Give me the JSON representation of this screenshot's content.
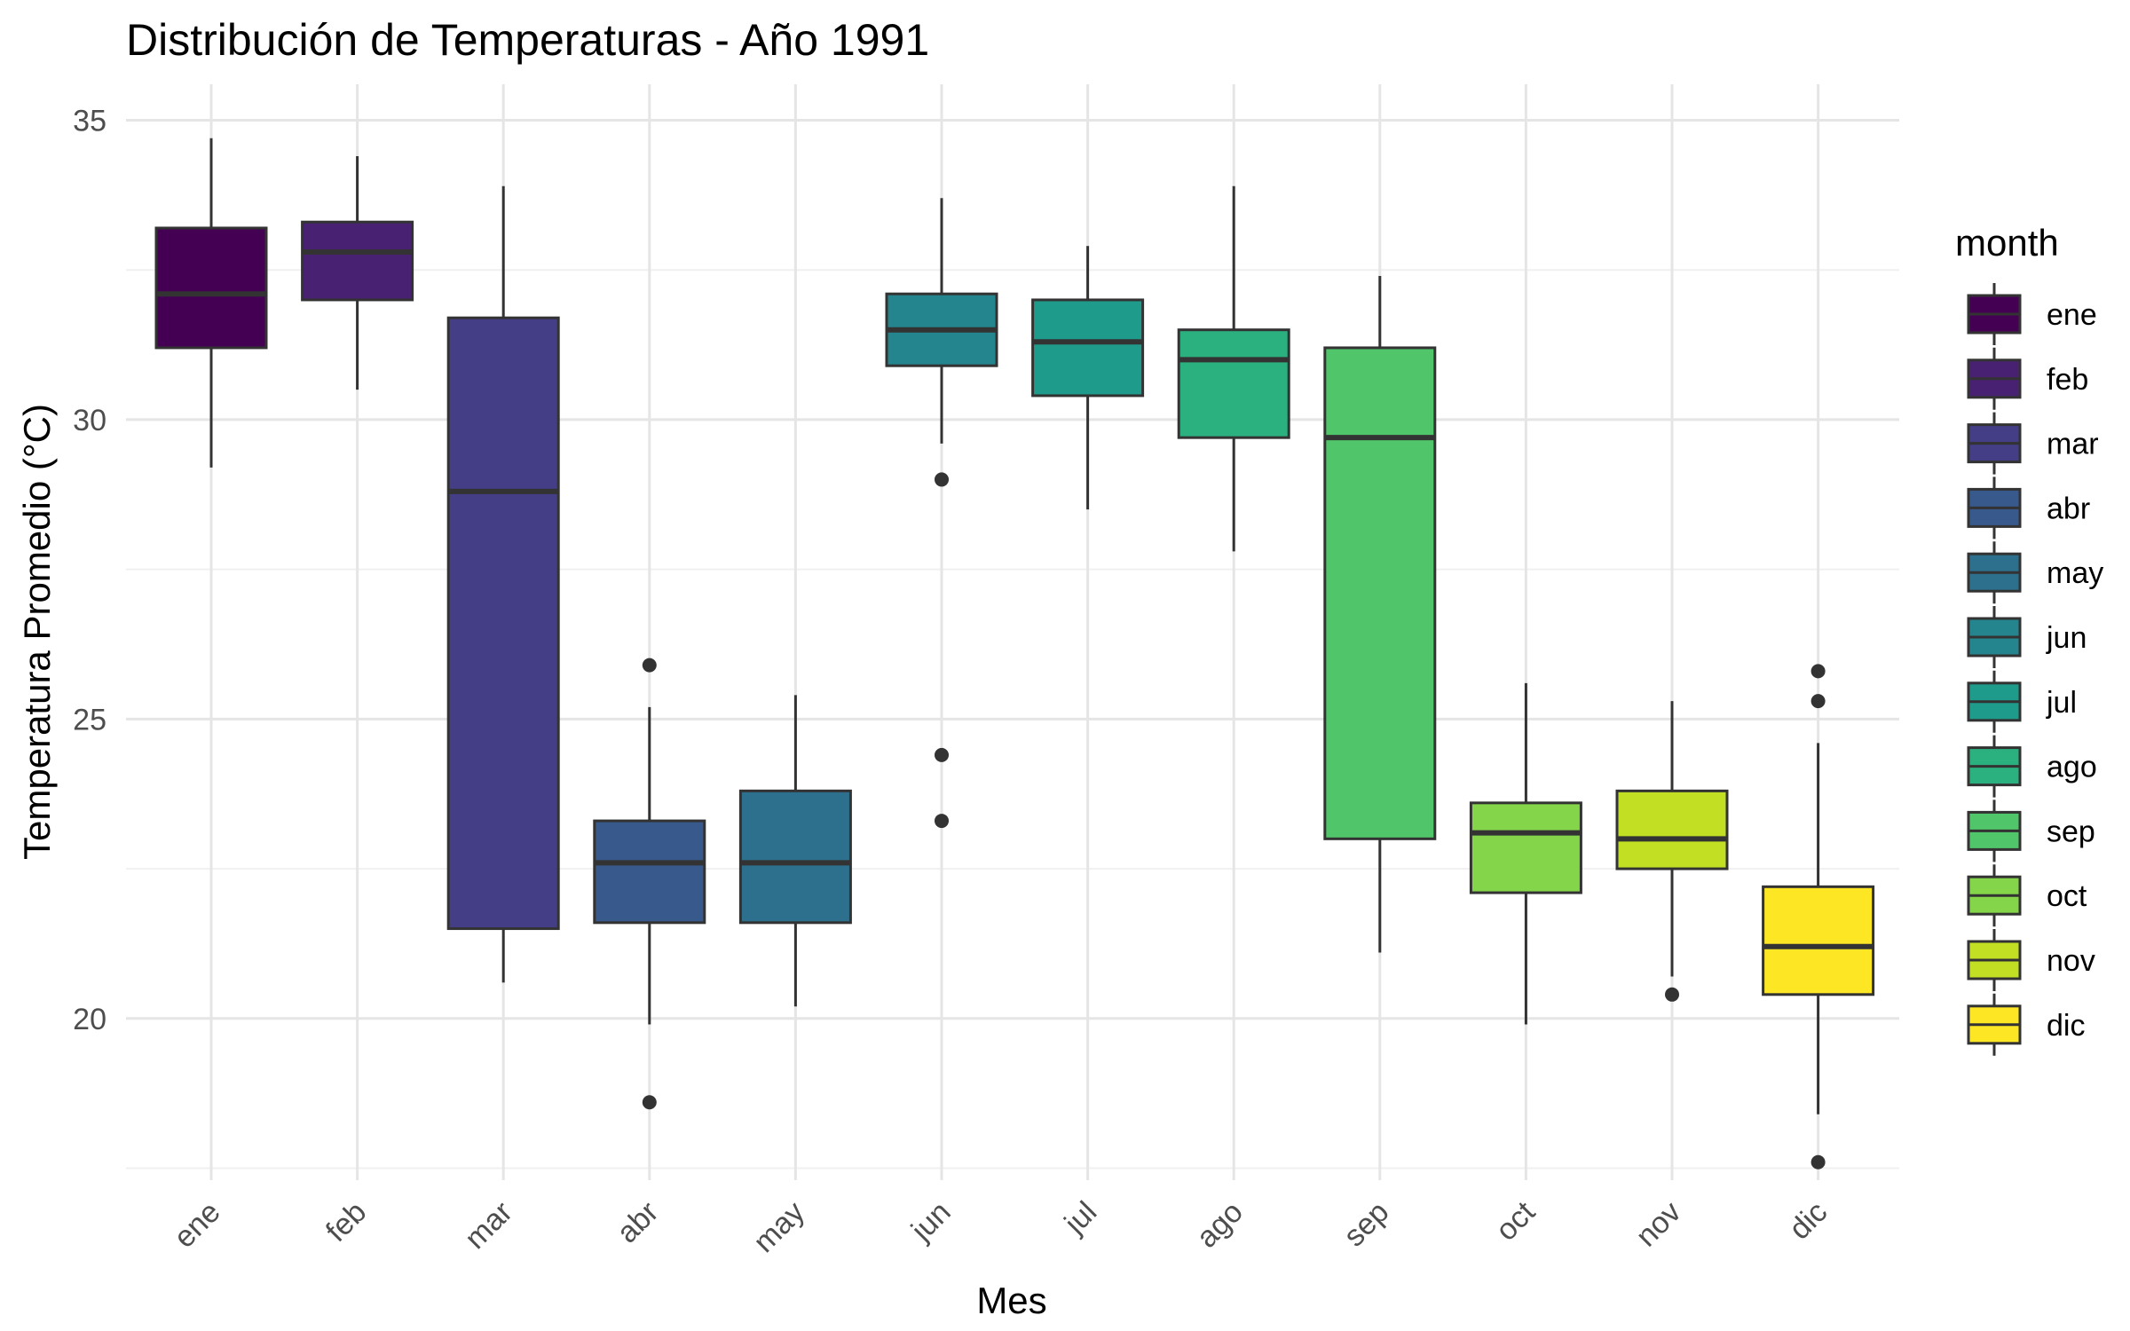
{
  "chart_data": {
    "type": "boxplot",
    "title": "Distribución de Temperaturas - Año 1991",
    "xlabel": "Mes",
    "ylabel": "Temperatura Promedio (°C)",
    "ylim": [
      17.3,
      35.6
    ],
    "yticks": [
      20,
      25,
      30,
      35
    ],
    "grid": true,
    "legend": {
      "title": "month",
      "position": "right"
    },
    "categories": [
      "ene",
      "feb",
      "mar",
      "abr",
      "may",
      "jun",
      "jul",
      "ago",
      "sep",
      "oct",
      "nov",
      "dic"
    ],
    "series": [
      {
        "category": "ene",
        "color": "#440154",
        "whisker_low": 29.2,
        "q1": 31.2,
        "median": 32.1,
        "q3": 33.2,
        "whisker_high": 34.7,
        "outliers": []
      },
      {
        "category": "feb",
        "color": "#482173",
        "whisker_low": 30.5,
        "q1": 32.0,
        "median": 32.8,
        "q3": 33.3,
        "whisker_high": 34.4,
        "outliers": []
      },
      {
        "category": "mar",
        "color": "#433E85",
        "whisker_low": 20.6,
        "q1": 21.5,
        "median": 28.8,
        "q3": 31.7,
        "whisker_high": 33.9,
        "outliers": []
      },
      {
        "category": "abr",
        "color": "#38598C",
        "whisker_low": 19.9,
        "q1": 21.6,
        "median": 22.6,
        "q3": 23.3,
        "whisker_high": 25.2,
        "outliers": [
          18.6,
          25.9
        ]
      },
      {
        "category": "may",
        "color": "#2D708E",
        "whisker_low": 20.2,
        "q1": 21.6,
        "median": 22.6,
        "q3": 23.8,
        "whisker_high": 25.4,
        "outliers": []
      },
      {
        "category": "jun",
        "color": "#25858E",
        "whisker_low": 29.6,
        "q1": 30.9,
        "median": 31.5,
        "q3": 32.1,
        "whisker_high": 33.7,
        "outliers": [
          29.0,
          24.4,
          23.3
        ]
      },
      {
        "category": "jul",
        "color": "#1E9B8A",
        "whisker_low": 28.5,
        "q1": 30.4,
        "median": 31.3,
        "q3": 32.0,
        "whisker_high": 32.9,
        "outliers": []
      },
      {
        "category": "ago",
        "color": "#2BB07F",
        "whisker_low": 27.8,
        "q1": 29.7,
        "median": 31.0,
        "q3": 31.5,
        "whisker_high": 33.9,
        "outliers": []
      },
      {
        "category": "sep",
        "color": "#51C56A",
        "whisker_low": 21.1,
        "q1": 23.0,
        "median": 29.7,
        "q3": 31.2,
        "whisker_high": 32.4,
        "outliers": []
      },
      {
        "category": "oct",
        "color": "#85D54A",
        "whisker_low": 19.9,
        "q1": 22.1,
        "median": 23.1,
        "q3": 23.6,
        "whisker_high": 25.6,
        "outliers": []
      },
      {
        "category": "nov",
        "color": "#C2DF23",
        "whisker_low": 20.7,
        "q1": 22.5,
        "median": 23.0,
        "q3": 23.8,
        "whisker_high": 25.3,
        "outliers": [
          20.4
        ]
      },
      {
        "category": "dic",
        "color": "#FDE725",
        "whisker_low": 18.4,
        "q1": 20.4,
        "median": 21.2,
        "q3": 22.2,
        "whisker_high": 24.6,
        "outliers": [
          25.8,
          25.3,
          17.6
        ]
      }
    ]
  }
}
